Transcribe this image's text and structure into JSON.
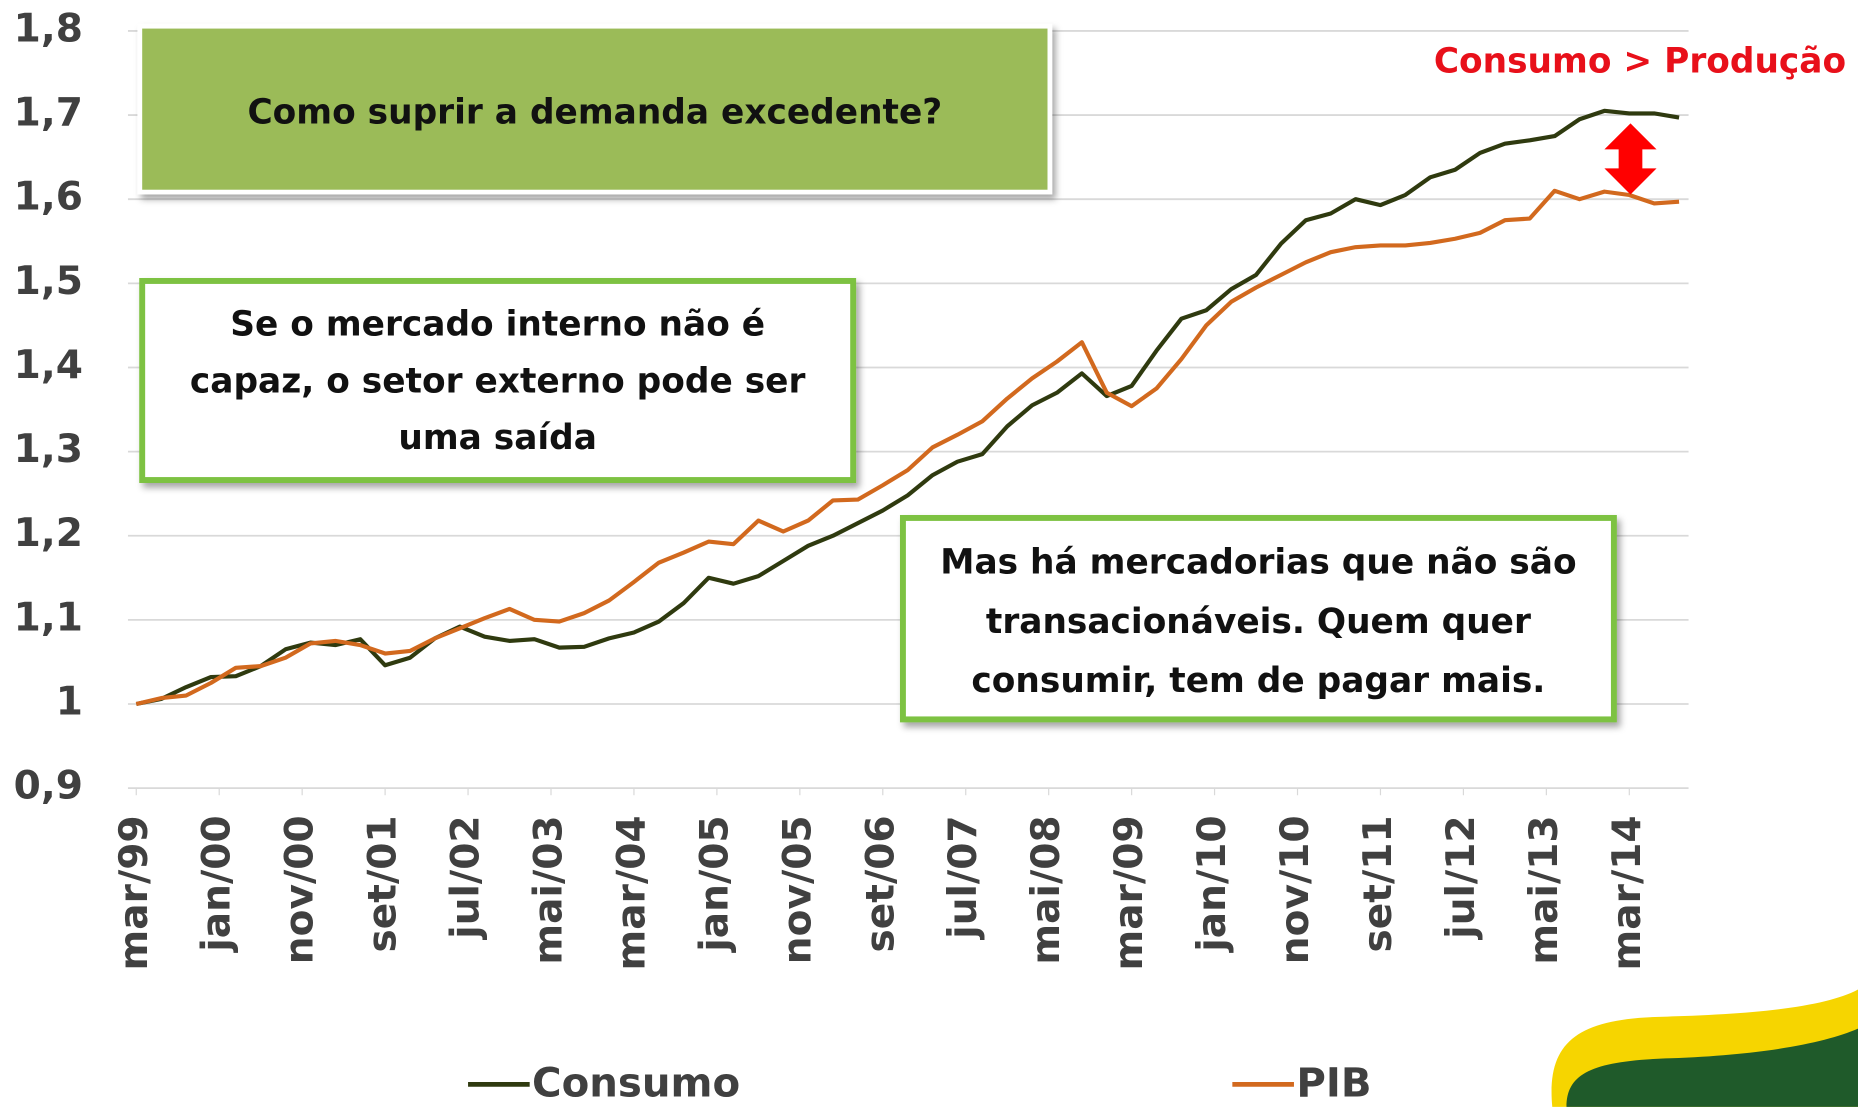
{
  "chart_data": {
    "type": "line",
    "x": [
      0,
      3,
      6,
      9,
      12,
      15,
      18,
      21,
      24,
      27,
      30,
      33,
      36,
      39,
      42,
      45,
      48,
      51,
      54,
      57,
      60,
      63,
      66,
      69,
      72,
      75,
      78,
      81,
      84,
      87,
      90,
      93,
      96,
      99,
      102,
      105,
      108,
      111,
      114,
      117,
      120,
      123,
      126,
      129,
      132,
      135,
      138,
      141,
      144,
      147,
      150,
      153,
      156,
      159,
      162,
      165,
      168,
      171,
      174,
      177,
      180,
      183,
      186
    ],
    "series": [
      {
        "name": "Consumo",
        "color": "#2f3a0f",
        "values": [
          1.0,
          1.006,
          1.02,
          1.032,
          1.033,
          1.045,
          1.065,
          1.073,
          1.07,
          1.077,
          1.046,
          1.055,
          1.078,
          1.092,
          1.08,
          1.075,
          1.077,
          1.067,
          1.068,
          1.078,
          1.085,
          1.098,
          1.12,
          1.15,
          1.143,
          1.152,
          1.17,
          1.188,
          1.2,
          1.215,
          1.23,
          1.248,
          1.272,
          1.288,
          1.297,
          1.33,
          1.355,
          1.37,
          1.393,
          1.366,
          1.378,
          1.42,
          1.458,
          1.468,
          1.493,
          1.51,
          1.547,
          1.575,
          1.583,
          1.6,
          1.593,
          1.605,
          1.626,
          1.635,
          1.655,
          1.666,
          1.67,
          1.675,
          1.695,
          1.705,
          1.702,
          1.702,
          1.697
        ]
      },
      {
        "name": "PIB",
        "color": "#d2691e",
        "values": [
          1.0,
          1.007,
          1.01,
          1.025,
          1.043,
          1.045,
          1.055,
          1.072,
          1.075,
          1.07,
          1.06,
          1.063,
          1.078,
          1.09,
          1.102,
          1.113,
          1.1,
          1.098,
          1.108,
          1.123,
          1.145,
          1.168,
          1.18,
          1.193,
          1.19,
          1.218,
          1.205,
          1.218,
          1.242,
          1.243,
          1.26,
          1.278,
          1.305,
          1.32,
          1.336,
          1.363,
          1.387,
          1.407,
          1.43,
          1.37,
          1.354,
          1.375,
          1.41,
          1.45,
          1.478,
          1.495,
          1.51,
          1.525,
          1.537,
          1.543,
          1.545,
          1.545,
          1.548,
          1.553,
          1.56,
          1.575,
          1.577,
          1.61,
          1.6,
          1.609,
          1.605,
          1.595,
          1.597
        ]
      }
    ],
    "xlim": [
      0,
      186
    ],
    "xticks": [
      {
        "value": 0,
        "label": "mar/99"
      },
      {
        "value": 10,
        "label": "jan/00"
      },
      {
        "value": 20,
        "label": "nov/00"
      },
      {
        "value": 30,
        "label": "set/01"
      },
      {
        "value": 40,
        "label": "jul/02"
      },
      {
        "value": 50,
        "label": "mai/03"
      },
      {
        "value": 60,
        "label": "mar/04"
      },
      {
        "value": 70,
        "label": "jan/05"
      },
      {
        "value": 80,
        "label": "nov/05"
      },
      {
        "value": 90,
        "label": "set/06"
      },
      {
        "value": 100,
        "label": "jul/07"
      },
      {
        "value": 110,
        "label": "mai/08"
      },
      {
        "value": 120,
        "label": "mar/09"
      },
      {
        "value": 130,
        "label": "jan/10"
      },
      {
        "value": 140,
        "label": "nov/10"
      },
      {
        "value": 150,
        "label": "set/11"
      },
      {
        "value": 160,
        "label": "jul/12"
      },
      {
        "value": 170,
        "label": "mai/13"
      },
      {
        "value": 180,
        "label": "mar/14"
      }
    ],
    "ylim": [
      0.9,
      1.8
    ],
    "yticks": [
      {
        "value": 0.9,
        "label": "0,9"
      },
      1,
      {
        "value": 1.1,
        "label": "1,1"
      },
      {
        "value": 1.2,
        "label": "1,2"
      },
      {
        "value": 1.3,
        "label": "1,3"
      },
      {
        "value": 1.4,
        "label": "1,4"
      },
      {
        "value": 1.5,
        "label": "1,5"
      },
      {
        "value": 1.6,
        "label": "1,6"
      },
      {
        "value": 1.7,
        "label": "1,7"
      },
      {
        "value": 1.8,
        "label": "1,8"
      }
    ],
    "grid": true,
    "legend": "bottom",
    "annotations": {
      "question": "Como suprir a demanda excedente?",
      "gap": "Consumo > Produção",
      "left_box": [
        "Se o mercado interno não é",
        "capaz, o setor externo pode ser",
        "uma saída"
      ],
      "right_box": [
        "Mas há mercadorias que não são",
        "transacionáveis. Quem quer",
        "consumir, tem de pagar mais."
      ]
    }
  }
}
